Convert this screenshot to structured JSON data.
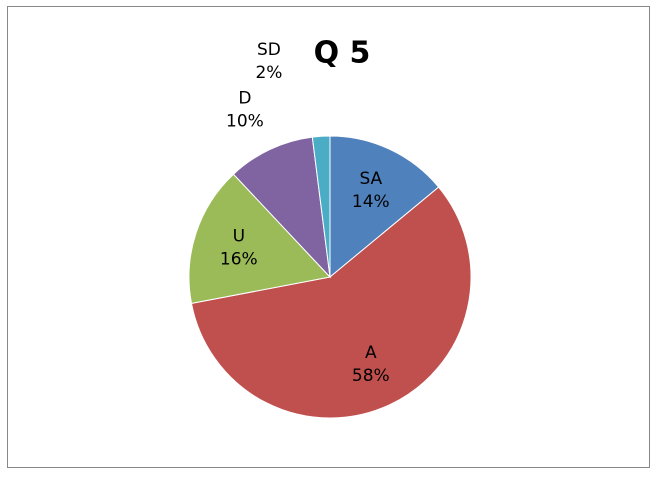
{
  "chart_data": {
    "type": "pie",
    "title": "Q 5",
    "categories": [
      "SA",
      "A",
      "U",
      "D",
      "SD"
    ],
    "values": [
      14,
      58,
      16,
      10,
      2
    ],
    "value_labels": [
      "14%",
      "58%",
      "16%",
      "10%",
      "2%"
    ],
    "colors": [
      "#4f81bd",
      "#c0504d",
      "#9bbb59",
      "#8064a2",
      "#4bacc6"
    ]
  }
}
